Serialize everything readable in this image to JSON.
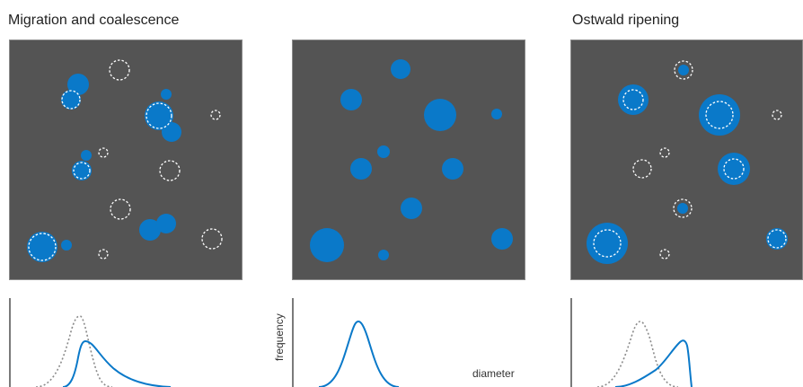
{
  "titles": {
    "left": "Migration and coalescence",
    "right": "Ostwald ripening"
  },
  "axis_labels": {
    "y": "frequency",
    "x": "diameter"
  },
  "colors": {
    "panel_bg": "#545454",
    "particle": "#0a79c9",
    "dashed_outline": "#ffffff",
    "curve": "#0a79c9",
    "initial_curve": "#8a8a8a"
  }
}
